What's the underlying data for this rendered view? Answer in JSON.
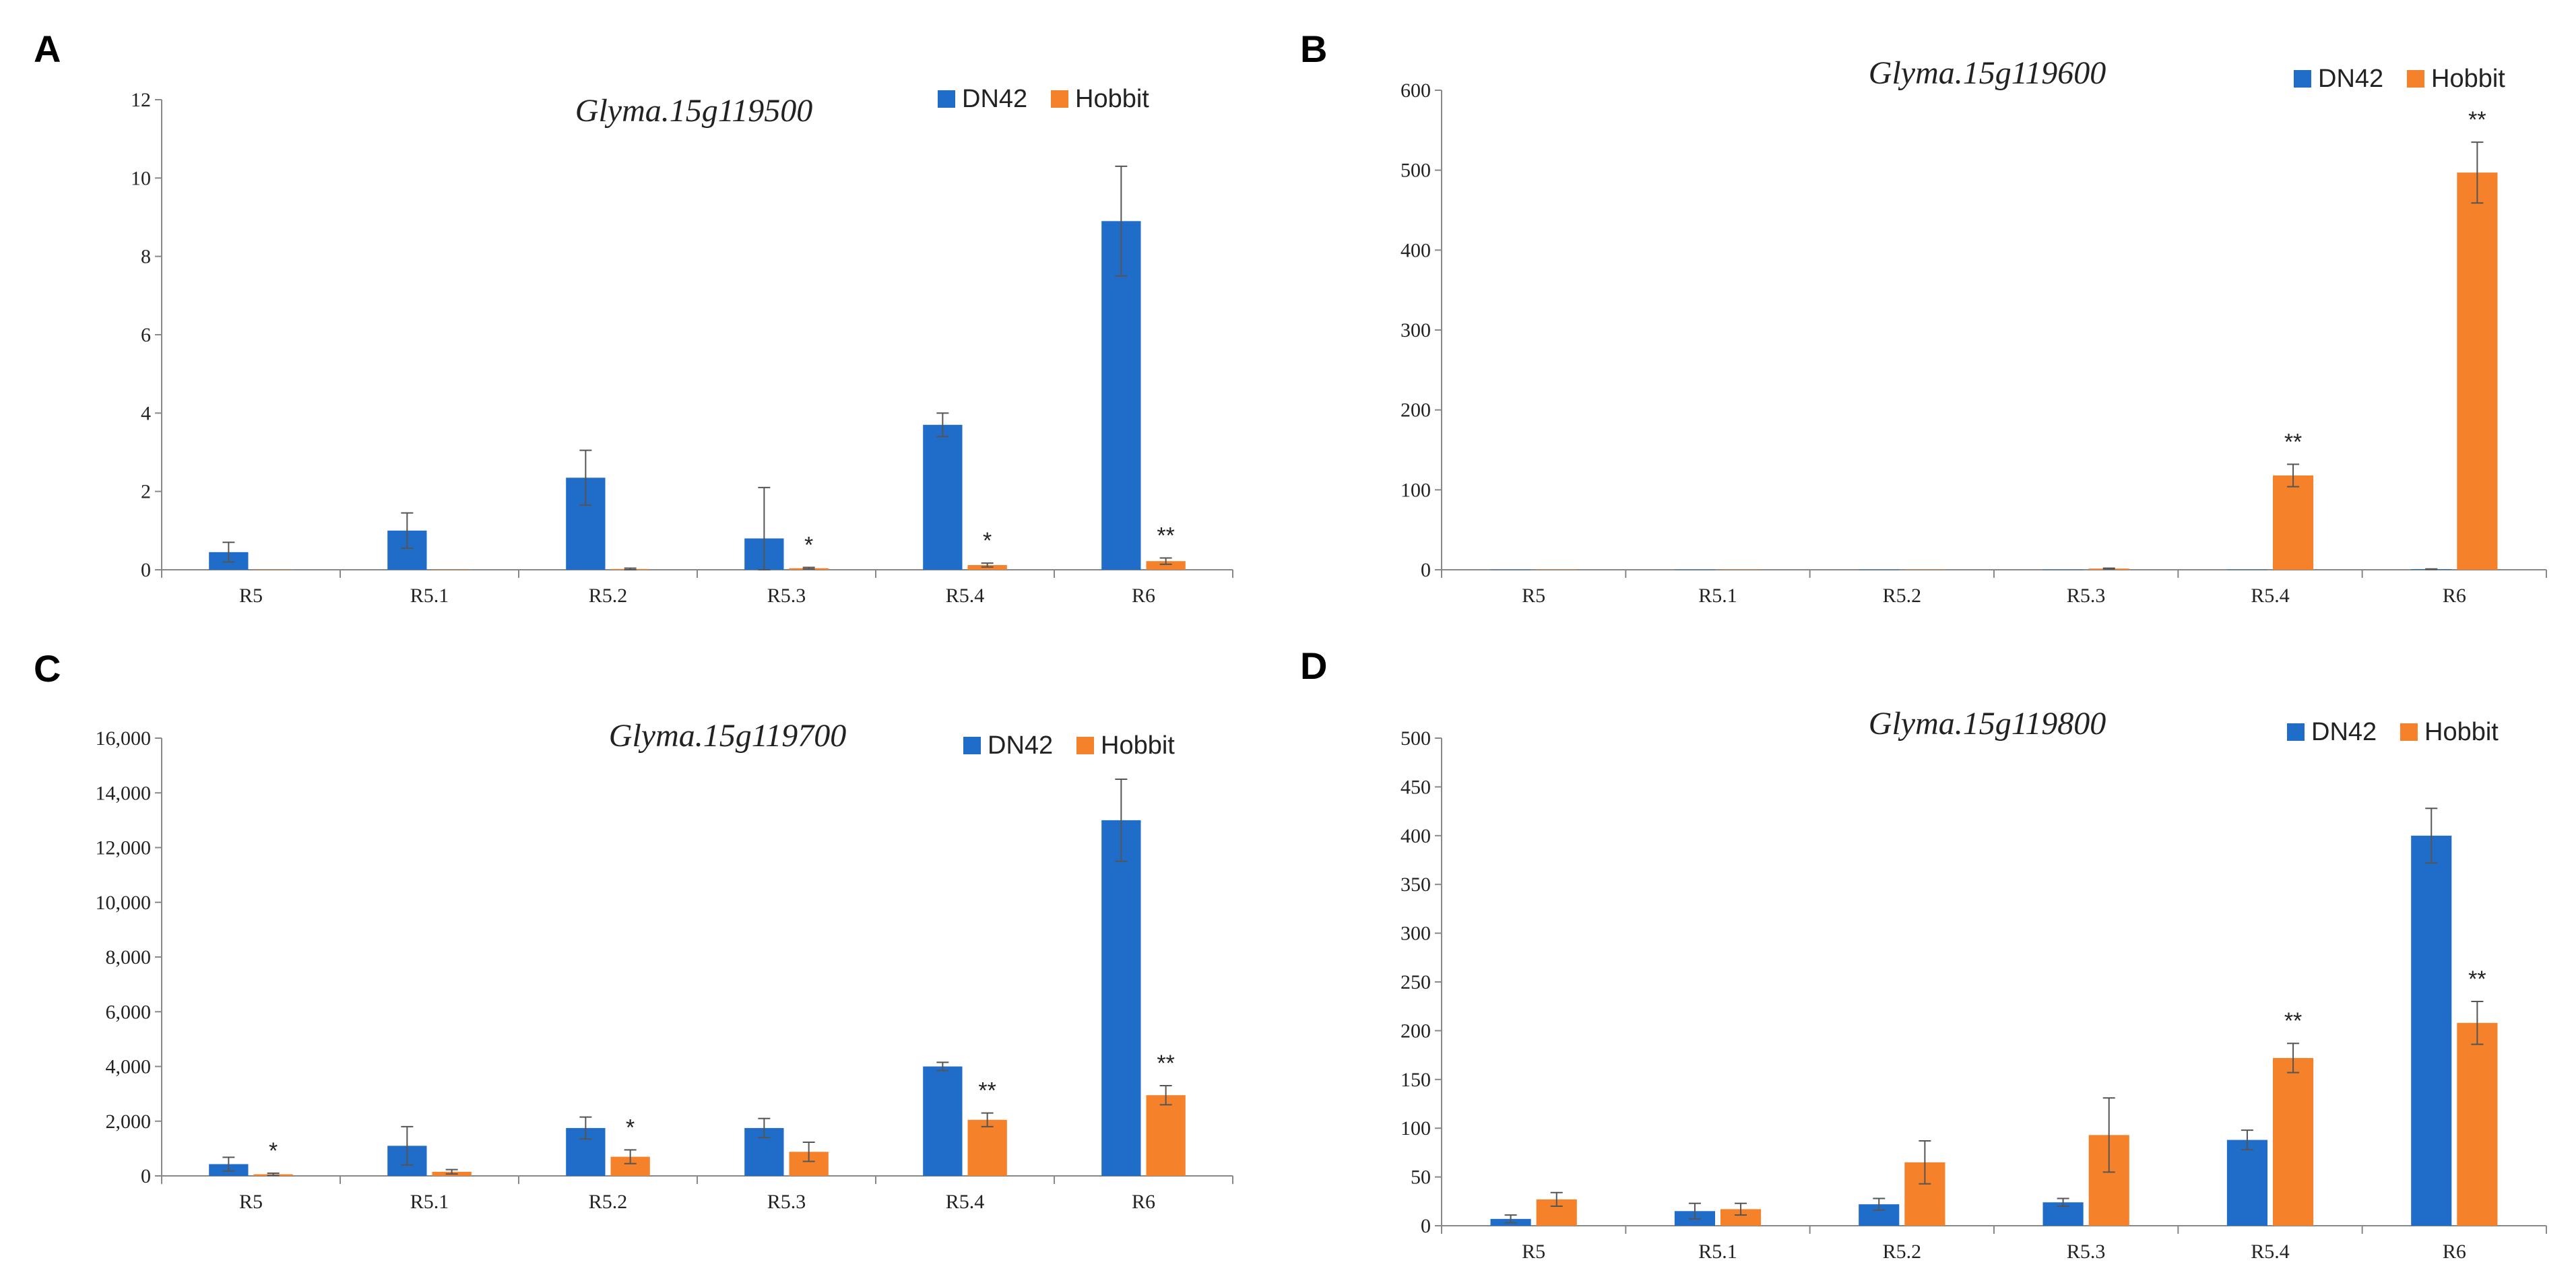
{
  "colors": {
    "DN42": "#1F6CC9",
    "Hobbit": "#F5822A",
    "axis": "#888888",
    "error": "#555555"
  },
  "chart_data": [
    {
      "panel": "A",
      "type": "bar",
      "title": "Glyma.15g119500",
      "categories": [
        "R5",
        "R5.1",
        "R5.2",
        "R5.3",
        "R5.4",
        "R6"
      ],
      "ylim": [
        0,
        12
      ],
      "yticks": [
        0,
        2,
        4,
        6,
        8,
        10,
        12
      ],
      "ytick_labels": [
        "0",
        "2",
        "4",
        "6",
        "8",
        "10",
        "12"
      ],
      "legend": [
        "DN42",
        "Hobbit"
      ],
      "series": [
        {
          "name": "DN42",
          "values": [
            0.45,
            1.0,
            2.35,
            0.8,
            3.7,
            8.9
          ],
          "errors": [
            0.25,
            0.45,
            0.7,
            1.3,
            0.3,
            1.4
          ]
        },
        {
          "name": "Hobbit",
          "values": [
            0,
            0,
            0.02,
            0.04,
            0.12,
            0.22
          ],
          "errors": [
            0,
            0,
            0.02,
            0.02,
            0.05,
            0.08
          ]
        }
      ],
      "annotations": [
        "",
        "",
        "",
        "*",
        "*",
        "**"
      ]
    },
    {
      "panel": "B",
      "type": "bar",
      "title": "Glyma.15g119600",
      "categories": [
        "R5",
        "R5.1",
        "R5.2",
        "R5.3",
        "R5.4",
        "R6"
      ],
      "ylim": [
        0,
        600
      ],
      "yticks": [
        0,
        100,
        200,
        300,
        400,
        500,
        600
      ],
      "ytick_labels": [
        "0",
        "100",
        "200",
        "300",
        "400",
        "500",
        "600"
      ],
      "legend": [
        "DN42",
        "Hobbit"
      ],
      "series": [
        {
          "name": "DN42",
          "values": [
            0.2,
            0.2,
            0.2,
            0.2,
            0.3,
            0.8
          ],
          "errors": [
            0,
            0,
            0,
            0,
            0,
            0.3
          ]
        },
        {
          "name": "Hobbit",
          "values": [
            0.5,
            0.5,
            0.5,
            1.5,
            118,
            497
          ],
          "errors": [
            0,
            0,
            0,
            0.5,
            14,
            38
          ]
        }
      ],
      "annotations": [
        "",
        "",
        "",
        "",
        "**",
        "**"
      ]
    },
    {
      "panel": "C",
      "type": "bar",
      "title": "Glyma.15g119700",
      "categories": [
        "R5",
        "R5.1",
        "R5.2",
        "R5.3",
        "R5.4",
        "R6"
      ],
      "ylim": [
        0,
        16000
      ],
      "yticks": [
        0,
        2000,
        4000,
        6000,
        8000,
        10000,
        12000,
        14000,
        16000
      ],
      "ytick_labels": [
        "0",
        "2,000",
        "4,000",
        "6,000",
        "8,000",
        "10,000",
        "12,000",
        "14,000",
        "16,000"
      ],
      "legend": [
        "DN42",
        "Hobbit"
      ],
      "series": [
        {
          "name": "DN42",
          "values": [
            430,
            1100,
            1750,
            1750,
            4000,
            13000
          ],
          "errors": [
            250,
            700,
            400,
            350,
            150,
            1500
          ]
        },
        {
          "name": "Hobbit",
          "values": [
            60,
            150,
            700,
            880,
            2050,
            2950
          ],
          "errors": [
            40,
            80,
            250,
            350,
            250,
            350
          ]
        }
      ],
      "annotations": [
        "*",
        "",
        "*",
        "",
        "**",
        "**"
      ]
    },
    {
      "panel": "D",
      "type": "bar",
      "title": "Glyma.15g119800",
      "categories": [
        "R5",
        "R5.1",
        "R5.2",
        "R5.3",
        "R5.4",
        "R6"
      ],
      "ylim": [
        0,
        500
      ],
      "yticks": [
        0,
        50,
        100,
        150,
        200,
        250,
        300,
        350,
        400,
        450,
        500
      ],
      "ytick_labels": [
        "0",
        "50",
        "100",
        "150",
        "200",
        "250",
        "300",
        "350",
        "400",
        "450",
        "500"
      ],
      "legend": [
        "DN42",
        "Hobbit"
      ],
      "series": [
        {
          "name": "DN42",
          "values": [
            7,
            15,
            22,
            24,
            88,
            400
          ],
          "errors": [
            4,
            8,
            6,
            4,
            10,
            28
          ]
        },
        {
          "name": "Hobbit",
          "values": [
            27,
            17,
            65,
            93,
            172,
            208
          ],
          "errors": [
            7,
            6,
            22,
            38,
            15,
            22
          ]
        }
      ],
      "annotations": [
        "",
        "",
        "",
        "",
        "**",
        "**"
      ]
    }
  ]
}
